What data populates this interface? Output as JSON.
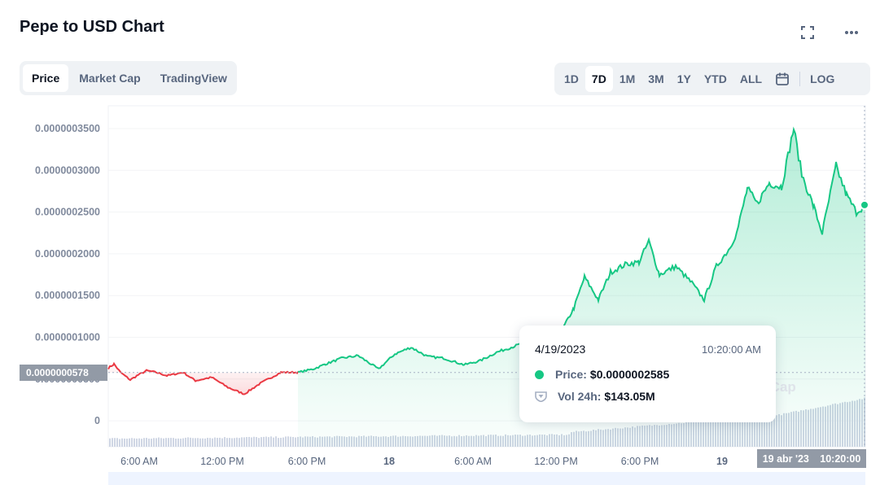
{
  "title": "Pepe to USD Chart",
  "header_icons": [
    "expand-icon",
    "more-icon"
  ],
  "tabs": [
    {
      "label": "Price",
      "active": true
    },
    {
      "label": "Market Cap",
      "active": false
    },
    {
      "label": "TradingView",
      "active": false
    }
  ],
  "ranges": [
    {
      "label": "1D",
      "active": false
    },
    {
      "label": "7D",
      "active": true
    },
    {
      "label": "1M",
      "active": false
    },
    {
      "label": "3M",
      "active": false
    },
    {
      "label": "1Y",
      "active": false
    },
    {
      "label": "YTD",
      "active": false
    },
    {
      "label": "ALL",
      "active": false
    }
  ],
  "log_label": "LOG",
  "colors": {
    "up": "#16c784",
    "down": "#ea3943",
    "volume": "#cfd6e4"
  },
  "current_price_tag": "0.0000000578",
  "crosshair_time": {
    "date": "19 abr '23",
    "time": "10:20:00"
  },
  "watermark": "tCap",
  "tooltip": {
    "date": "4/19/2023",
    "time": "10:20:00 AM",
    "price_label": "Price:",
    "price_value": "$0.0000002585",
    "vol_label": "Vol 24h:",
    "vol_value": "$143.05M"
  },
  "chart_data": {
    "type": "area",
    "y_ticks": [
      "0.0000003500",
      "0.0000003000",
      "0.0000002500",
      "0.0000002000",
      "0.0000001500",
      "0.0000001000",
      "0.0000000500",
      "0"
    ],
    "ylim": [
      0,
      3.7e-07
    ],
    "x_ticks": [
      "6:00 AM",
      "12:00 PM",
      "6:00 PM",
      "18",
      "6:00 AM",
      "12:00 PM",
      "6:00 PM",
      "19"
    ],
    "series": [
      {
        "color": "#ea3943",
        "x": [
          "Apr 17 03:00",
          "Apr 17 12:00",
          "Apr 17 21:00"
        ],
        "y": [
          5.8e-08,
          5.4e-08,
          5.6e-08
        ]
      },
      {
        "color": "#16c784",
        "x": [
          "Apr 17 21:00",
          "Apr 18 06:00",
          "Apr 18 14:00",
          "Apr 18 18:00",
          "Apr 18 22:00",
          "Apr 19 02:00",
          "Apr 19 06:00",
          "Apr 19 10:20"
        ],
        "y": [
          5.8e-08,
          8e-08,
          1.1e-07,
          1.9e-07,
          1.7e-07,
          2e-07,
          3.5e-07,
          2.585e-07
        ]
      }
    ],
    "baseline": 5.78e-08,
    "volume": "24h volume bars along the bottom, rising toward Apr 19"
  }
}
